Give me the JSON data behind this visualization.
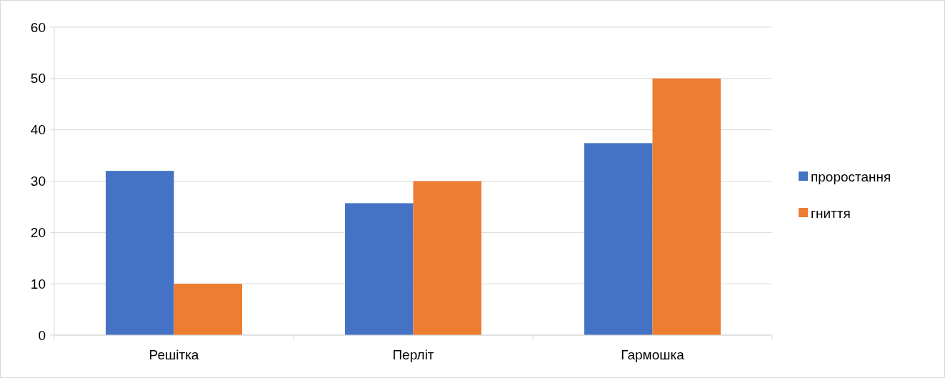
{
  "chart_data": {
    "type": "bar",
    "categories": [
      "Решітка",
      "Перліт",
      "Гармошка"
    ],
    "series": [
      {
        "name": "проростання",
        "color": "#4472c4",
        "values": [
          32,
          25.7,
          37.4
        ]
      },
      {
        "name": "гниття",
        "color": "#ed7d31",
        "values": [
          10,
          30,
          50
        ]
      }
    ],
    "ylim": [
      0,
      60
    ],
    "yticks": [
      0,
      10,
      20,
      30,
      40,
      50,
      60
    ],
    "grid": "y",
    "legend": "right"
  }
}
